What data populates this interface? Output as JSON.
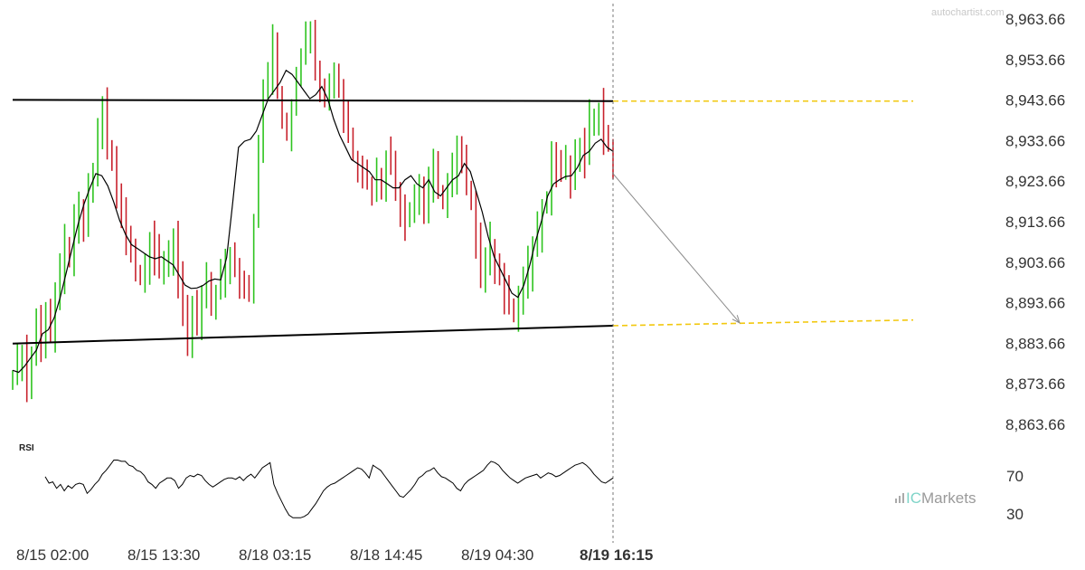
{
  "watermark": "autochartist.com",
  "brand": {
    "prefix": "IC",
    "name": "Markets",
    "prefix_color": "#7fd4c8",
    "name_color": "#9a9a9a"
  },
  "colors": {
    "up_bar": "#2ec41f",
    "down_bar": "#c8212c",
    "moving_average": "#000000",
    "pattern_line": "#000000",
    "projection": "#f2c80f",
    "forecast_arrow": "#8a8a8a",
    "current_time_line": "#777777"
  },
  "chart_data": [
    {
      "type": "ohlc",
      "pattern": "channel",
      "ylim": [
        8861.66,
        8965.66
      ],
      "y_ticks": [
        "8,963.66",
        "8,953.66",
        "8,943.66",
        "8,933.66",
        "8,923.66",
        "8,913.66",
        "8,903.66",
        "8,893.66",
        "8,883.66",
        "8,873.66",
        "8,863.66"
      ],
      "x_ticks": [
        "8/15 02:00",
        "8/15 13:30",
        "8/18 03:15",
        "8/18 14:45",
        "8/19 04:30",
        "8/19 16:15"
      ],
      "current_time": "8/19 16:15",
      "grid": false,
      "resistance_line": {
        "start": 8943.7,
        "end": 8943.4
      },
      "support_line": {
        "start": 8883.6,
        "end": 8888.0
      },
      "projected_resistance": 8943.4,
      "projected_support": {
        "start": 8888.0,
        "end": 8889.4
      },
      "forecast_target": 8888.7,
      "forecast_from": 8925.5,
      "price_series": [
        8876,
        8878,
        8882,
        8875,
        8880,
        8889,
        8885,
        8892,
        8887,
        8895,
        8900,
        8908,
        8905,
        8912,
        8916,
        8913,
        8920,
        8925,
        8935,
        8942,
        8930,
        8928,
        8920,
        8918,
        8910,
        8906,
        8902,
        8900,
        8904,
        8908,
        8906,
        8903,
        8904,
        8906,
        8910,
        8898,
        8890,
        8885,
        8892,
        8888,
        8894,
        8898,
        8892,
        8896,
        8900,
        8902,
        8905,
        8903,
        8900,
        8898,
        8896,
        8914,
        8930,
        8945,
        8950,
        8957,
        8945,
        8938,
        8935,
        8942,
        8950,
        8955,
        8958,
        8962,
        8952,
        8945,
        8943,
        8948,
        8950,
        8946,
        8940,
        8935,
        8930,
        8928,
        8925,
        8923,
        8920,
        8925,
        8922,
        8930,
        8928,
        8922,
        8918,
        8914,
        8917,
        8920,
        8922,
        8918,
        8924,
        8926,
        8921,
        8918,
        8922,
        8926,
        8930,
        8927,
        8922,
        8920,
        8910,
        8900,
        8905,
        8908,
        8904,
        8900,
        8895,
        8892,
        8890,
        8894,
        8898,
        8902,
        8908,
        8912,
        8918,
        8920,
        8930,
        8928,
        8925,
        8927,
        8924,
        8928,
        8932,
        8930,
        8938,
        8940,
        8942,
        8935,
        8932,
        8928
      ],
      "ma_series": [
        8877,
        8876.5,
        8878,
        8880,
        8882,
        8886,
        8887,
        8890,
        8895,
        8901,
        8907,
        8913,
        8918,
        8922,
        8925.5,
        8925,
        8922.5,
        8918.5,
        8914,
        8910.5,
        8908,
        8907,
        8906,
        8905,
        8904.5,
        8905,
        8904,
        8903,
        8900.5,
        8898,
        8897.2,
        8897.3,
        8897.9,
        8899,
        8899.5,
        8899.3,
        8904.8,
        8918,
        8932,
        8933.5,
        8934,
        8936,
        8940,
        8944,
        8946,
        8948,
        8951,
        8950,
        8948,
        8946,
        8944,
        8945,
        8947,
        8944,
        8939,
        8935,
        8932,
        8929,
        8928,
        8927,
        8926,
        8924,
        8924,
        8923,
        8922,
        8922,
        8924,
        8925,
        8923,
        8922,
        8924,
        8921,
        8920,
        8922,
        8924,
        8925,
        8928,
        8926,
        8921,
        8916,
        8910,
        8905,
        8902,
        8899,
        8896,
        8895,
        8898,
        8903,
        8909,
        8914,
        8920,
        8923,
        8924,
        8924.8,
        8925,
        8927,
        8930,
        8931,
        8933,
        8934,
        8932,
        8931
      ],
      "rsi": {
        "title": "RSI",
        "ticks": [
          "70",
          "30"
        ],
        "ylim": [
          20,
          80
        ],
        "values": [
          61,
          56,
          57,
          52,
          55,
          50,
          54,
          52,
          55,
          56,
          55,
          48,
          51,
          55,
          58,
          63,
          66,
          70,
          74,
          74,
          73,
          73,
          70,
          69,
          66,
          65,
          62,
          57,
          55,
          52,
          56,
          58,
          60,
          60,
          58,
          52,
          55,
          60,
          62,
          61,
          63,
          62,
          58,
          55,
          53,
          55,
          57,
          59,
          60,
          60,
          59,
          61,
          58,
          61,
          63,
          60,
          64,
          68,
          70,
          72,
          70,
          68,
          66,
          62,
          58,
          54,
          50,
          46,
          45,
          48,
          51,
          55,
          60,
          62,
          65,
          66,
          68,
          64,
          61,
          60,
          58,
          56,
          52,
          50,
          55,
          58,
          60,
          62,
          64,
          66,
          70,
          73,
          72,
          70,
          66,
          63,
          60,
          58,
          56,
          58,
          60,
          61,
          62,
          63,
          60,
          62,
          64,
          63,
          61,
          62,
          64,
          66,
          68,
          70,
          71,
          72,
          70,
          67,
          63,
          60,
          57,
          56,
          58,
          60
        ],
        "low_segment": [
          55,
          48,
          42,
          36,
          31,
          29,
          29,
          29,
          30,
          32,
          36,
          40,
          45,
          50,
          53,
          55,
          56,
          58,
          60,
          62,
          64,
          66,
          68,
          67,
          64,
          60
        ]
      }
    }
  ]
}
